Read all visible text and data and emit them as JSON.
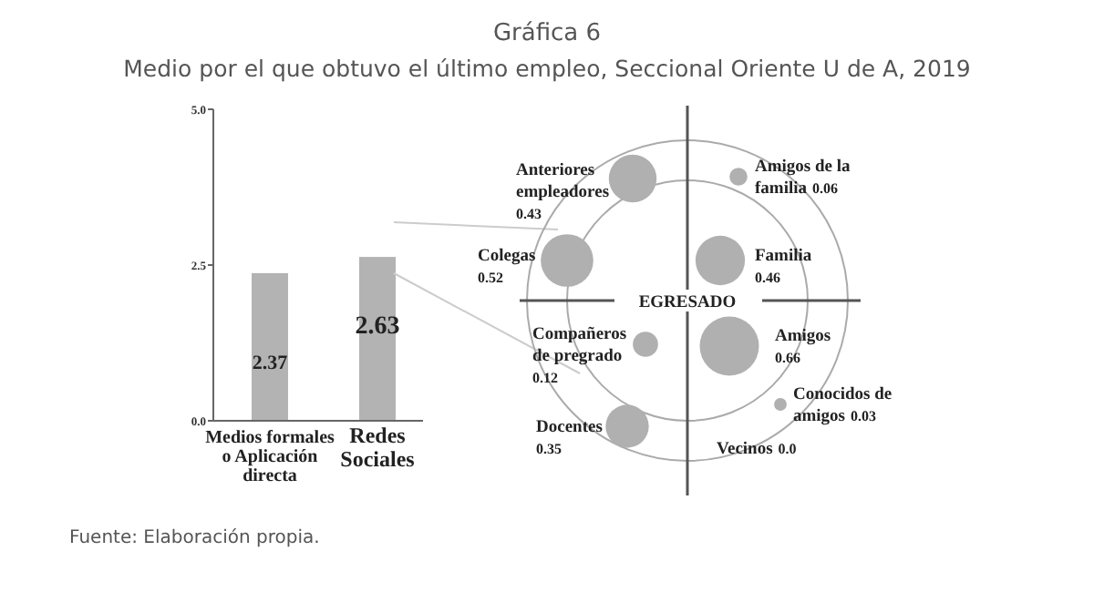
{
  "chart_data": [
    {
      "type": "bar",
      "categories": [
        "Medios formales o Aplicación directa",
        "Redes Sociales"
      ],
      "values": [
        2.37,
        2.63
      ],
      "color": "#b3b3b3",
      "data_labels": true,
      "ylim": [
        0,
        5
      ],
      "yticks": [
        {
          "value": 0,
          "label": "0.0"
        },
        {
          "value": 2.5,
          "label": "2.5"
        },
        {
          "value": 5,
          "label": "5.0"
        }
      ],
      "grid": false,
      "annotations": [
        "Fuente: Elaboración propia."
      ]
    },
    {
      "type": "other",
      "title": "Gráfica 6",
      "subtitle": "Medio por el que obtuvo el último empleo, Seccional Oriente U de A, 2019",
      "categories": [
        "Anteriores empleadores",
        "Amigos de la familia",
        "Colegas",
        "Familia",
        "Compañeros de pregrado",
        "Amigos",
        "Conocidos de amigos",
        "Docentes",
        "Vecinos"
      ],
      "values": [
        0.43,
        0.06,
        0.52,
        0.46,
        0.12,
        0.66,
        0.03,
        0.35,
        0
      ],
      "value_labels": [
        "0.43",
        "0.06",
        "0.52",
        "0.46",
        "0.12",
        "0.66",
        "0.03",
        "0.35",
        "0.0"
      ],
      "color": "#b0b0b0",
      "annotations": [
        "EGRESADO"
      ]
    }
  ]
}
